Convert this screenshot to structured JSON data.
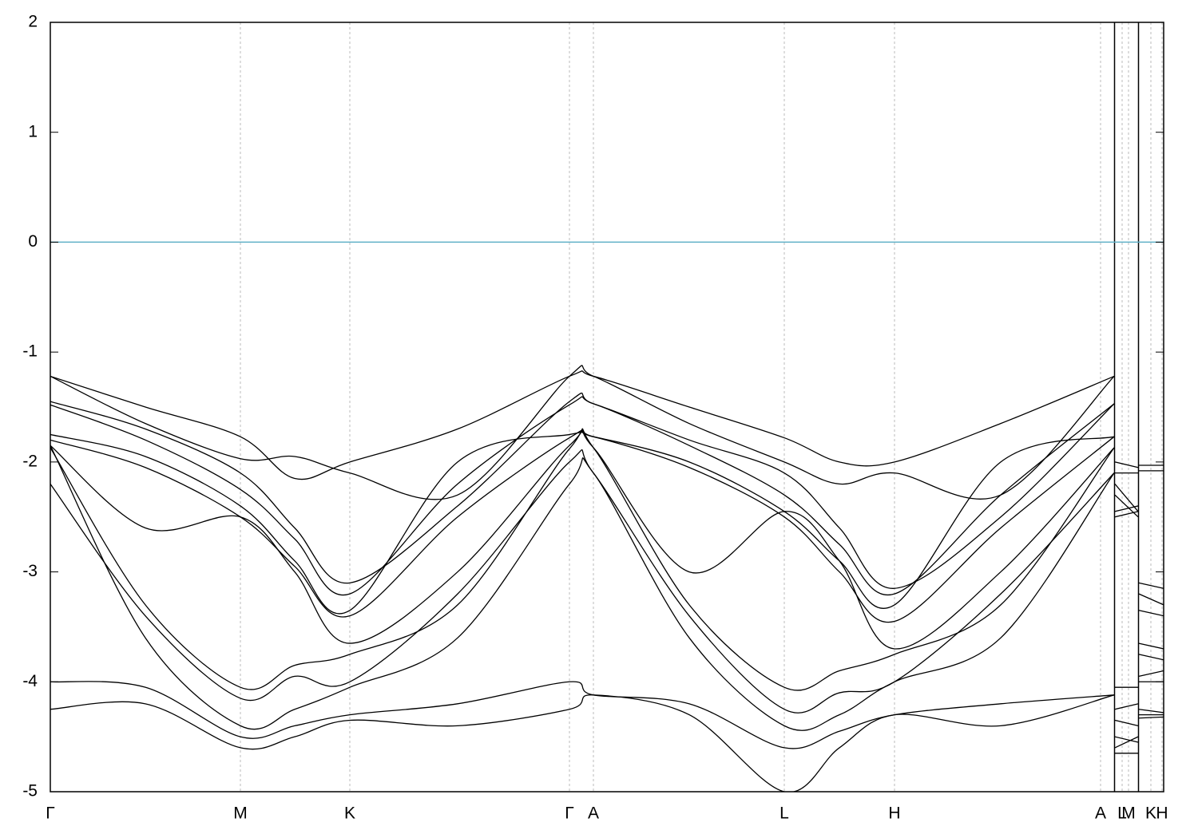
{
  "chart_data": {
    "type": "line",
    "x": [
      0,
      1.19,
      2.38,
      3.06,
      3.75,
      5.1,
      6.5,
      6.8,
      8.0,
      9.19,
      9.88,
      10.57,
      11.9,
      13.32,
      13.325,
      13.33,
      13.62,
      13.625,
      13.63,
      13.94
    ],
    "xlim": [
      0,
      13.94
    ],
    "xticks": [
      {
        "value": 0,
        "label": "Γ"
      },
      {
        "value": 2.38,
        "label": "M"
      },
      {
        "value": 3.75,
        "label": "K"
      },
      {
        "value": 6.5,
        "label": "Γ"
      },
      {
        "value": 6.8,
        "label": "A"
      },
      {
        "value": 9.19,
        "label": "L"
      },
      {
        "value": 10.57,
        "label": "H"
      },
      {
        "value": 13.15,
        "label": "A"
      },
      {
        "value": 13.42,
        "label": "L"
      },
      {
        "value": 13.5,
        "label": "M"
      },
      {
        "value": 13.78,
        "label": "K"
      },
      {
        "value": 13.92,
        "label": "H"
      }
    ],
    "ylim": [
      -5,
      2
    ],
    "yticks": [
      -5,
      -4,
      -3,
      -2,
      -1,
      0,
      1,
      2
    ],
    "fermi_level": 0,
    "fermi_color": "#5fb0c7",
    "grid": true,
    "series": [
      {
        "color": "#000000",
        "values": [
          -1.22,
          -1.5,
          -1.77,
          -2.15,
          -2.0,
          -1.7,
          -1.22,
          -1.22,
          -1.5,
          -1.78,
          -2.0,
          -2.0,
          -1.65,
          -1.22,
          null,
          -2.0,
          -2.05,
          null,
          -2.03,
          -2.03
        ]
      },
      {
        "color": "#000000",
        "values": [
          -1.22,
          -1.65,
          -1.97,
          -1.95,
          -2.1,
          -2.3,
          -1.22,
          -1.22,
          -1.65,
          -2.0,
          -2.2,
          -2.1,
          -2.3,
          -1.22,
          null,
          -2.1,
          -2.1,
          null,
          -2.08,
          -2.08
        ]
      },
      {
        "color": "#000000",
        "values": [
          -1.45,
          -1.7,
          -2.1,
          -2.6,
          -3.1,
          -2.4,
          -1.45,
          -1.47,
          -1.8,
          -2.1,
          -2.6,
          -3.15,
          -2.5,
          -1.47,
          null,
          -2.2,
          -2.45,
          null,
          -3.1,
          -3.15
        ]
      },
      {
        "color": "#000000",
        "values": [
          -1.48,
          -1.8,
          -2.25,
          -2.7,
          -3.2,
          -2.2,
          -1.48,
          -1.47,
          -1.85,
          -2.3,
          -2.75,
          -3.2,
          -2.3,
          -1.47,
          null,
          -2.3,
          -2.5,
          null,
          -3.2,
          -3.3
        ]
      },
      {
        "color": "#000000",
        "values": [
          -1.75,
          -1.95,
          -2.4,
          -2.9,
          -3.35,
          -2.0,
          -1.75,
          -1.77,
          -2.0,
          -2.45,
          -2.9,
          -3.3,
          -2.0,
          -1.77,
          null,
          -2.45,
          -2.4,
          null,
          -3.35,
          -3.4
        ]
      },
      {
        "color": "#000000",
        "values": [
          -1.8,
          -2.05,
          -2.5,
          -2.95,
          -3.4,
          -2.5,
          -1.78,
          -1.77,
          -2.05,
          -2.5,
          -3.0,
          -3.45,
          -2.6,
          -1.77,
          null,
          -2.5,
          -2.45,
          null,
          -3.65,
          -3.7
        ]
      },
      {
        "color": "#000000",
        "values": [
          -1.85,
          -2.6,
          -2.5,
          -3.0,
          -3.65,
          -3.0,
          -1.85,
          -1.87,
          -3.0,
          -2.45,
          -2.9,
          -3.7,
          -3.0,
          -1.87,
          null,
          -4.05,
          -4.05,
          null,
          -3.75,
          -3.8
        ]
      },
      {
        "color": "#000000",
        "values": [
          -1.87,
          -3.3,
          -4.05,
          -3.85,
          -3.75,
          -3.3,
          -1.88,
          -1.87,
          -3.3,
          -4.05,
          -3.9,
          -3.75,
          -3.3,
          -1.87,
          null,
          -4.25,
          -4.2,
          null,
          -3.95,
          -3.9
        ]
      },
      {
        "color": "#000000",
        "values": [
          -2.2,
          -3.4,
          -4.15,
          -3.95,
          -4.0,
          -3.2,
          -2.0,
          -2.1,
          -3.4,
          -4.25,
          -4.1,
          -4.0,
          -3.2,
          -2.1,
          null,
          -4.35,
          -4.4,
          null,
          -4.0,
          -4.0
        ]
      },
      {
        "color": "#000000",
        "values": [
          -1.85,
          -3.6,
          -4.4,
          -4.25,
          -4.05,
          -3.6,
          -2.2,
          -2.1,
          -3.6,
          -4.4,
          -4.3,
          -4.0,
          -3.6,
          -2.1,
          null,
          -4.5,
          -4.55,
          null,
          -4.25,
          -4.28
        ]
      },
      {
        "color": "#000000",
        "values": [
          -4.0,
          -4.05,
          -4.5,
          -4.4,
          -4.3,
          -4.2,
          -4.0,
          -4.12,
          -4.2,
          -4.6,
          -4.45,
          -4.3,
          -4.2,
          -4.12,
          null,
          -4.6,
          -4.5,
          null,
          -4.3,
          -4.3
        ]
      },
      {
        "color": "#000000",
        "values": [
          -4.25,
          -4.2,
          -4.6,
          -4.5,
          -4.35,
          -4.4,
          -4.25,
          -4.12,
          -4.3,
          -5.0,
          -4.6,
          -4.3,
          -4.4,
          -4.12,
          null,
          -4.65,
          -4.65,
          null,
          -4.33,
          -4.32
        ]
      }
    ]
  }
}
